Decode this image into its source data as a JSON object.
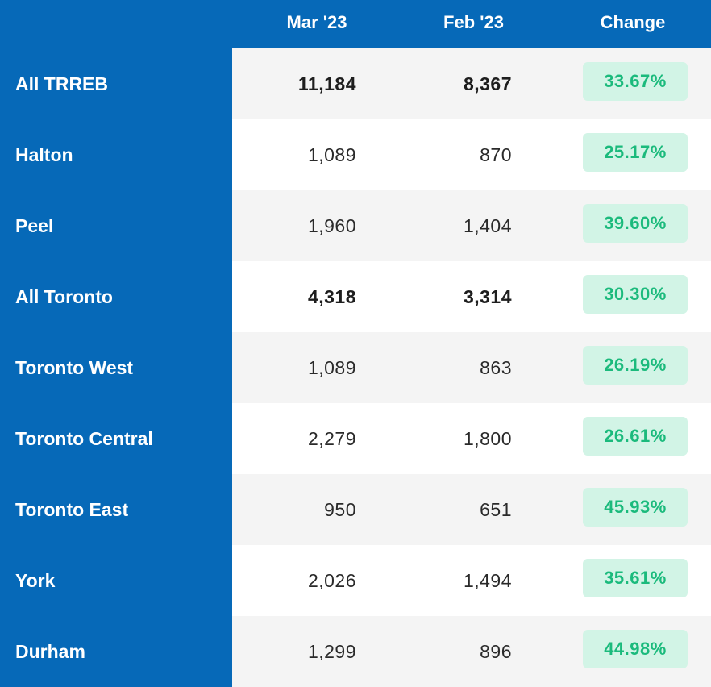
{
  "header": {
    "col_mar": "Mar '23",
    "col_feb": "Feb '23",
    "col_change": "Change"
  },
  "rows": [
    {
      "region": "All TRREB",
      "mar": "11,184",
      "feb": "8,367",
      "change": "33.67%"
    },
    {
      "region": "Halton",
      "mar": "1,089",
      "feb": "870",
      "change": "25.17%"
    },
    {
      "region": "Peel",
      "mar": "1,960",
      "feb": "1,404",
      "change": "39.60%"
    },
    {
      "region": "All Toronto",
      "mar": "4,318",
      "feb": "3,314",
      "change": "30.30%"
    },
    {
      "region": "Toronto West",
      "mar": "1,089",
      "feb": "863",
      "change": "26.19%"
    },
    {
      "region": "Toronto Central",
      "mar": "2,279",
      "feb": "1,800",
      "change": "26.61%"
    },
    {
      "region": "Toronto East",
      "mar": "950",
      "feb": "651",
      "change": "45.93%"
    },
    {
      "region": "York",
      "mar": "2,026",
      "feb": "1,494",
      "change": "35.61%"
    },
    {
      "region": "Durham",
      "mar": "1,299",
      "feb": "896",
      "change": "44.98%"
    }
  ],
  "colors": {
    "primary_blue": "#0669b8",
    "badge_bg": "#d2f4e6",
    "badge_text": "#1bba7c",
    "row_alt": "#f4f4f4"
  }
}
